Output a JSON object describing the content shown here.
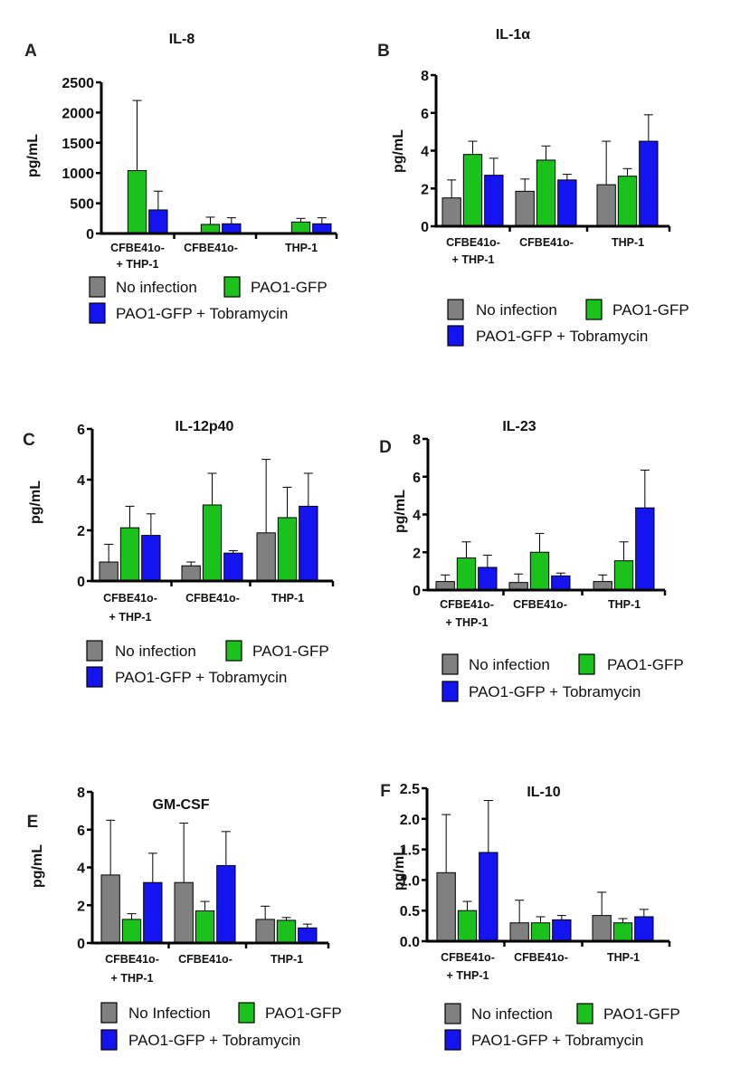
{
  "colors": {
    "no_infection": "#808080",
    "pao1_gfp": "#1bc21b",
    "pao1_gfp_tobramycin": "#1414f0",
    "axis": "#000000"
  },
  "chart_data": [
    {
      "letter": "A",
      "type": "bar",
      "title": "IL-8",
      "ylabel": "pg/mL",
      "ylim": [
        0,
        2500
      ],
      "yticks": [
        "0",
        "500",
        "1000",
        "1500",
        "2000",
        "2500"
      ],
      "categories": [
        [
          "CFBE41o-",
          "+ THP-1"
        ],
        [
          "CFBE41o-"
        ],
        [
          "THP-1"
        ]
      ],
      "series": [
        {
          "name": "No infection",
          "values": [
            5,
            0,
            0
          ],
          "errors": [
            0,
            0,
            0
          ]
        },
        {
          "name": "PAO1-GFP",
          "values": [
            1040,
            150,
            190
          ],
          "errors": [
            1160,
            120,
            60
          ]
        },
        {
          "name": "PAO1-GFP + Tobramycin",
          "values": [
            390,
            160,
            160
          ],
          "errors": [
            310,
            100,
            100
          ]
        }
      ],
      "legend": [
        "No infection",
        "PAO1-GFP",
        "PAO1-GFP + Tobramycin"
      ]
    },
    {
      "letter": "B",
      "type": "bar",
      "title": "IL-1α",
      "ylabel": "pg/mL",
      "ylim": [
        0,
        8
      ],
      "yticks": [
        "0",
        "2",
        "4",
        "6",
        "8"
      ],
      "categories": [
        [
          "CFBE41o-",
          "+ THP-1"
        ],
        [
          "CFBE41o-"
        ],
        [
          "THP-1"
        ]
      ],
      "series": [
        {
          "name": "No infection",
          "values": [
            1.5,
            1.85,
            2.2
          ],
          "errors": [
            0.95,
            0.65,
            2.3
          ]
        },
        {
          "name": "PAO1-GFP",
          "values": [
            3.8,
            3.5,
            2.65
          ],
          "errors": [
            0.7,
            0.75,
            0.4
          ]
        },
        {
          "name": "PAO1-GFP + Tobramycin",
          "values": [
            2.7,
            2.45,
            4.5
          ],
          "errors": [
            0.9,
            0.3,
            1.4
          ]
        }
      ],
      "legend": [
        "No infection",
        "PAO1-GFP",
        "PAO1-GFP + Tobramycin"
      ]
    },
    {
      "letter": "C",
      "type": "bar",
      "title": "IL-12p40",
      "ylabel": "pg/mL",
      "ylim": [
        0,
        6
      ],
      "yticks": [
        "0",
        "2",
        "4",
        "6"
      ],
      "categories": [
        [
          "CFBE41o-",
          "+ THP-1"
        ],
        [
          "CFBE41o-"
        ],
        [
          "THP-1"
        ]
      ],
      "series": [
        {
          "name": "No infection",
          "values": [
            0.75,
            0.6,
            1.9
          ],
          "errors": [
            0.7,
            0.15,
            2.9
          ]
        },
        {
          "name": "PAO1-GFP",
          "values": [
            2.1,
            3.0,
            2.5
          ],
          "errors": [
            0.85,
            1.25,
            1.2
          ]
        },
        {
          "name": "PAO1-GFP + Tobramycin",
          "values": [
            1.8,
            1.1,
            2.95
          ],
          "errors": [
            0.85,
            0.1,
            1.3
          ]
        }
      ],
      "legend": [
        "No infection",
        "PAO1-GFP",
        "PAO1-GFP + Tobramycin"
      ]
    },
    {
      "letter": "D",
      "type": "bar",
      "title": "IL-23",
      "ylabel": "pg/mL",
      "ylim": [
        0,
        8
      ],
      "yticks": [
        "0",
        "2",
        "4",
        "6",
        "8"
      ],
      "categories": [
        [
          "CFBE41o-",
          "+ THP-1"
        ],
        [
          "CFBE41o-"
        ],
        [
          "THP-1"
        ]
      ],
      "series": [
        {
          "name": "No infection",
          "values": [
            0.45,
            0.4,
            0.45
          ],
          "errors": [
            0.35,
            0.45,
            0.35
          ]
        },
        {
          "name": "PAO1-GFP",
          "values": [
            1.7,
            2.0,
            1.55
          ],
          "errors": [
            0.85,
            1.0,
            1.0
          ]
        },
        {
          "name": "PAO1-GFP + Tobramycin",
          "values": [
            1.2,
            0.75,
            4.35
          ],
          "errors": [
            0.65,
            0.15,
            2.0
          ]
        }
      ],
      "legend": [
        "No infection",
        "PAO1-GFP",
        "PAO1-GFP + Tobramycin"
      ]
    },
    {
      "letter": "E",
      "type": "bar",
      "title": "GM-CSF",
      "ylabel": "pg/mL",
      "ylim": [
        0,
        8
      ],
      "yticks": [
        "0",
        "2",
        "4",
        "6",
        "8"
      ],
      "categories": [
        [
          "CFBE41o-",
          "+ THP-1"
        ],
        [
          "CFBE41o-"
        ],
        [
          "THP-1"
        ]
      ],
      "series": [
        {
          "name": "No Infection",
          "values": [
            3.6,
            3.2,
            1.25
          ],
          "errors": [
            2.9,
            3.15,
            0.7
          ]
        },
        {
          "name": "PAO1-GFP",
          "values": [
            1.25,
            1.7,
            1.2
          ],
          "errors": [
            0.3,
            0.5,
            0.15
          ]
        },
        {
          "name": "PAO1-GFP + Tobramycin",
          "values": [
            3.2,
            4.1,
            0.8
          ],
          "errors": [
            1.55,
            1.8,
            0.2
          ]
        }
      ],
      "legend": [
        "No Infection",
        "PAO1-GFP",
        "PAO1-GFP + Tobramycin"
      ]
    },
    {
      "letter": "F",
      "type": "bar",
      "title": "IL-10",
      "ylabel": "pg/mL",
      "ylim": [
        0,
        2.5
      ],
      "yticks": [
        "0.0",
        "0.5",
        "1.0",
        "1.5",
        "2.0",
        "2.5"
      ],
      "categories": [
        [
          "CFBE41o-",
          "+ THP-1"
        ],
        [
          "CFBE41o-"
        ],
        [
          "THP-1"
        ]
      ],
      "series": [
        {
          "name": "No infection",
          "values": [
            1.12,
            0.3,
            0.42
          ],
          "errors": [
            0.95,
            0.37,
            0.38
          ]
        },
        {
          "name": "PAO1-GFP",
          "values": [
            0.5,
            0.3,
            0.3
          ],
          "errors": [
            0.15,
            0.1,
            0.07
          ]
        },
        {
          "name": "PAO1-GFP + Tobramycin",
          "values": [
            1.45,
            0.35,
            0.4
          ],
          "errors": [
            0.85,
            0.07,
            0.12
          ]
        }
      ],
      "legend": [
        "No infection",
        "PAO1-GFP",
        "PAO1-GFP + Tobramycin"
      ]
    }
  ]
}
